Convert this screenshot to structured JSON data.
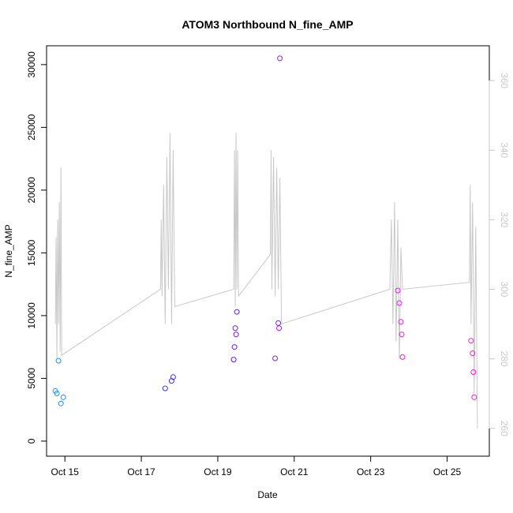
{
  "chart_data": {
    "type": "scatter",
    "title": "ATOM3 Northbound N_fine_AMP",
    "xlabel": "Date",
    "ylabel": "N_fine_AMP",
    "x_range_days": [
      "2024-10-14T00:00",
      "2024-10-26T00:00"
    ],
    "xlim": [
      "2024-10-14T12:30",
      "2024-10-26T02:30"
    ],
    "ylim": [
      -1200,
      31500
    ],
    "y2lim": [
      252,
      370
    ],
    "x_ticks": [
      {
        "date": "2024-10-15",
        "label": "Oct 15"
      },
      {
        "date": "2024-10-17",
        "label": "Oct 17"
      },
      {
        "date": "2024-10-19",
        "label": "Oct 19"
      },
      {
        "date": "2024-10-21",
        "label": "Oct 21"
      },
      {
        "date": "2024-10-23",
        "label": "Oct 23"
      },
      {
        "date": "2024-10-25",
        "label": "Oct 25"
      }
    ],
    "y_ticks": [
      0,
      5000,
      10000,
      15000,
      20000,
      25000,
      30000
    ],
    "y2_ticks": [
      260,
      280,
      300,
      320,
      340,
      360
    ],
    "point_color_gradient": [
      "#1ab2ff",
      "#1a4cff",
      "#4c1aff",
      "#a21aff",
      "#e61aff",
      "#ff1acd"
    ],
    "line_color": "#c8c8c8",
    "series": [
      {
        "type": "points",
        "values": [
          [
            "2024-10-14T18:00",
            4000
          ],
          [
            "2024-10-14T19:00",
            3800
          ],
          [
            "2024-10-14T20:00",
            6400
          ],
          [
            "2024-10-14T21:30",
            3000
          ],
          [
            "2024-10-14T23:00",
            3500
          ],
          [
            "2024-10-17T15:00",
            4200
          ],
          [
            "2024-10-17T20:00",
            5100
          ],
          [
            "2024-10-17T19:00",
            4800
          ],
          [
            "2024-10-19T10:00",
            6500
          ],
          [
            "2024-10-19T11:00",
            9000
          ],
          [
            "2024-10-19T12:00",
            10300
          ],
          [
            "2024-10-19T11:30",
            8500
          ],
          [
            "2024-10-19T10:30",
            7500
          ],
          [
            "2024-10-20T14:00",
            9400
          ],
          [
            "2024-10-20T14:30",
            9000
          ],
          [
            "2024-10-20T12:00",
            6600
          ],
          [
            "2024-10-20T15:00",
            30500
          ],
          [
            "2024-10-23T17:00",
            12000
          ],
          [
            "2024-10-23T18:00",
            11000
          ],
          [
            "2024-10-23T19:00",
            9500
          ],
          [
            "2024-10-23T20:00",
            6700
          ],
          [
            "2024-10-23T19:30",
            8500
          ],
          [
            "2024-10-25T15:00",
            8000
          ],
          [
            "2024-10-25T16:00",
            7000
          ],
          [
            "2024-10-25T16:30",
            5500
          ],
          [
            "2024-10-25T17:00",
            3500
          ]
        ]
      },
      {
        "type": "line",
        "axis": "right",
        "values": [
          [
            "2024-10-14T18:00",
            290
          ],
          [
            "2024-10-14T18:30",
            315
          ],
          [
            "2024-10-14T19:00",
            280
          ],
          [
            "2024-10-14T19:30",
            320
          ],
          [
            "2024-10-14T20:00",
            290
          ],
          [
            "2024-10-14T20:30",
            325
          ],
          [
            "2024-10-14T21:00",
            282
          ],
          [
            "2024-10-14T21:30",
            335
          ],
          [
            "2024-10-14T22:00",
            281
          ],
          [
            "2024-10-17T12:00",
            300
          ],
          [
            "2024-10-17T12:30",
            320
          ],
          [
            "2024-10-17T13:00",
            298
          ],
          [
            "2024-10-17T14:00",
            330
          ],
          [
            "2024-10-17T15:00",
            290
          ],
          [
            "2024-10-17T16:00",
            338
          ],
          [
            "2024-10-17T17:00",
            300
          ],
          [
            "2024-10-17T18:00",
            345
          ],
          [
            "2024-10-17T19:00",
            290
          ],
          [
            "2024-10-17T20:00",
            340
          ],
          [
            "2024-10-17T21:00",
            295
          ],
          [
            "2024-10-19T10:00",
            300
          ],
          [
            "2024-10-19T10:30",
            340
          ],
          [
            "2024-10-19T11:00",
            295
          ],
          [
            "2024-10-19T11:30",
            345
          ],
          [
            "2024-10-19T12:00",
            300
          ],
          [
            "2024-10-19T12:30",
            340
          ],
          [
            "2024-10-19T13:00",
            298
          ],
          [
            "2024-10-20T09:00",
            310
          ],
          [
            "2024-10-20T09:30",
            340
          ],
          [
            "2024-10-20T10:00",
            300
          ],
          [
            "2024-10-20T11:00",
            338
          ],
          [
            "2024-10-20T12:00",
            298
          ],
          [
            "2024-10-20T13:00",
            335
          ],
          [
            "2024-10-20T14:00",
            300
          ],
          [
            "2024-10-20T15:00",
            332
          ],
          [
            "2024-10-20T16:00",
            290
          ],
          [
            "2024-10-23T12:00",
            300
          ],
          [
            "2024-10-23T13:00",
            320
          ],
          [
            "2024-10-23T14:00",
            290
          ],
          [
            "2024-10-23T15:00",
            325
          ],
          [
            "2024-10-23T16:00",
            285
          ],
          [
            "2024-10-23T17:00",
            320
          ],
          [
            "2024-10-23T18:00",
            280
          ],
          [
            "2024-10-23T19:00",
            312
          ],
          [
            "2024-10-23T20:00",
            300
          ],
          [
            "2024-10-25T14:00",
            302
          ],
          [
            "2024-10-25T14:30",
            330
          ],
          [
            "2024-10-25T15:00",
            290
          ],
          [
            "2024-10-25T16:00",
            325
          ],
          [
            "2024-10-25T17:00",
            270
          ],
          [
            "2024-10-25T18:00",
            318
          ],
          [
            "2024-10-25T19:00",
            260
          ]
        ]
      }
    ]
  }
}
